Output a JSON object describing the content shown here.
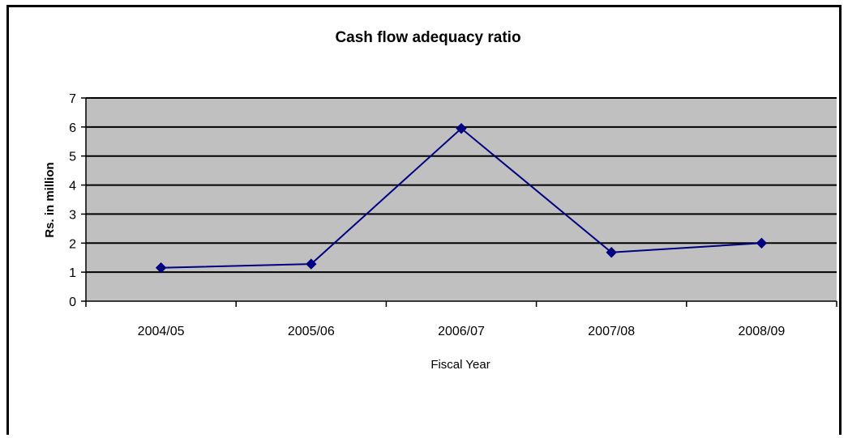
{
  "chart_data": {
    "type": "line",
    "title": "Cash flow adequacy ratio",
    "xlabel": "Fiscal Year",
    "ylabel": "Rs. in million",
    "categories": [
      "2004/05",
      "2005/06",
      "2006/07",
      "2007/08",
      "2008/09"
    ],
    "series": [
      {
        "values": [
          1.15,
          1.28,
          5.95,
          1.68,
          2.0
        ]
      }
    ],
    "ylim": [
      0,
      7
    ],
    "yticks": [
      "0",
      "1",
      "2",
      "3",
      "4",
      "5",
      "6",
      "7"
    ],
    "grid": true,
    "legend": "none",
    "colors": {
      "plot_background": "#C0C0C0",
      "line": "#000080",
      "marker": "#000080",
      "grid": "#000000"
    }
  }
}
